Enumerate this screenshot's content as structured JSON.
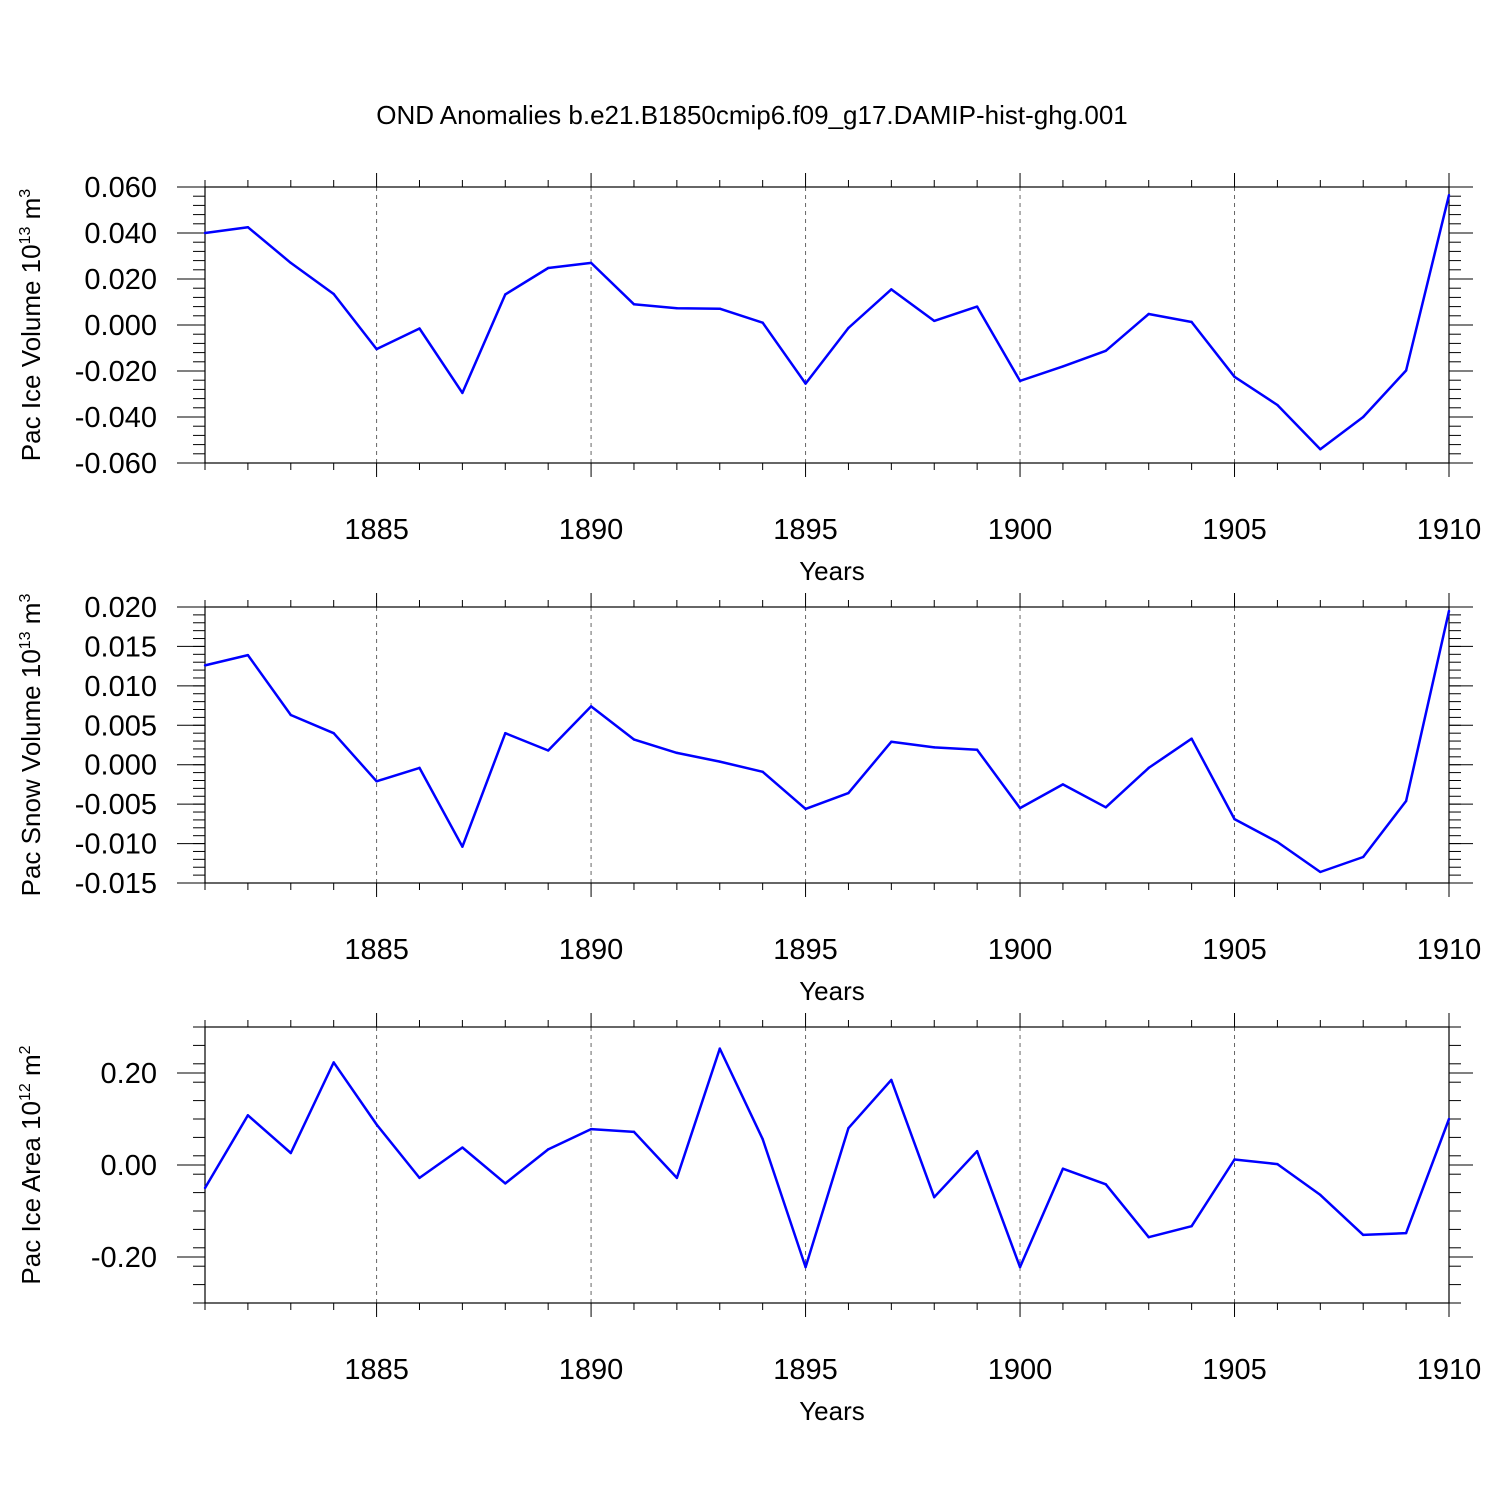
{
  "title": "OND Anomalies b.e21.B1850cmip6.f09_g17.DAMIP-hist-ghg.001",
  "colors": {
    "series": "#0000ff",
    "frame": "#000000",
    "grid": "#666666"
  },
  "chart_data": [
    {
      "type": "line",
      "ylabel": "Pac Ice Volume 10",
      "ylabel_exp": "13",
      "ylabel_unit": " m",
      "ylabel_unit_exp": "3",
      "xlabel": "Years",
      "xlim": [
        1881,
        1910
      ],
      "ylim": [
        -0.06,
        0.06
      ],
      "x_ticks": [
        1885,
        1890,
        1895,
        1900,
        1905,
        1910
      ],
      "y_ticks": [
        0.06,
        0.04,
        0.02,
        0.0,
        -0.02,
        -0.04,
        -0.06
      ],
      "y_tick_labels": [
        "0.060",
        "0.040",
        "0.020",
        "0.000",
        "-0.020",
        "-0.040",
        "-0.060"
      ],
      "grid": "vertical dashed at x ticks",
      "x": [
        1881,
        1882,
        1883,
        1884,
        1885,
        1886,
        1887,
        1888,
        1889,
        1890,
        1891,
        1892,
        1893,
        1894,
        1895,
        1896,
        1897,
        1898,
        1899,
        1900,
        1901,
        1902,
        1903,
        1904,
        1905,
        1906,
        1907,
        1908,
        1909,
        1910
      ],
      "values": [
        0.04,
        0.0425,
        0.027,
        0.0135,
        -0.0105,
        -0.0015,
        -0.0295,
        0.0133,
        0.0248,
        0.027,
        0.009,
        0.0073,
        0.0071,
        0.001,
        -0.0255,
        -0.0013,
        0.0155,
        0.0018,
        0.008,
        -0.0243,
        -0.018,
        -0.0112,
        0.0048,
        0.0013,
        -0.0225,
        -0.0348,
        -0.054,
        -0.04,
        -0.0198,
        0.0565
      ]
    },
    {
      "type": "line",
      "ylabel": "Pac Snow Volume 10",
      "ylabel_exp": "13",
      "ylabel_unit": " m",
      "ylabel_unit_exp": "3",
      "xlabel": "Years",
      "xlim": [
        1881,
        1910
      ],
      "ylim": [
        -0.015,
        0.02
      ],
      "x_ticks": [
        1885,
        1890,
        1895,
        1900,
        1905,
        1910
      ],
      "y_ticks": [
        0.02,
        0.015,
        0.01,
        0.005,
        0.0,
        -0.005,
        -0.01,
        -0.015
      ],
      "y_tick_labels": [
        "0.020",
        "0.015",
        "0.010",
        "0.005",
        "0.000",
        "-0.005",
        "-0.010",
        "-0.015"
      ],
      "grid": "vertical dashed at x ticks",
      "x": [
        1881,
        1882,
        1883,
        1884,
        1885,
        1886,
        1887,
        1888,
        1889,
        1890,
        1891,
        1892,
        1893,
        1894,
        1895,
        1896,
        1897,
        1898,
        1899,
        1900,
        1901,
        1902,
        1903,
        1904,
        1905,
        1906,
        1907,
        1908,
        1909,
        1910
      ],
      "values": [
        0.0126,
        0.0139,
        0.0063,
        0.004,
        -0.0021,
        -0.0004,
        -0.0104,
        0.004,
        0.0018,
        0.0074,
        0.0032,
        0.0015,
        0.0004,
        -0.0009,
        -0.0056,
        -0.0036,
        0.0029,
        0.0022,
        0.0019,
        -0.0055,
        -0.0025,
        -0.0054,
        -0.0004,
        0.0033,
        -0.0069,
        -0.0098,
        -0.0136,
        -0.0117,
        -0.0046,
        0.0195
      ]
    },
    {
      "type": "line",
      "ylabel": "Pac Ice Area 10",
      "ylabel_exp": "12",
      "ylabel_unit": " m",
      "ylabel_unit_exp": "2",
      "xlabel": "Years",
      "xlim": [
        1881,
        1910
      ],
      "ylim": [
        -0.3,
        0.3
      ],
      "x_ticks": [
        1885,
        1890,
        1895,
        1900,
        1905,
        1910
      ],
      "y_ticks": [
        0.2,
        0.0,
        -0.2
      ],
      "y_tick_labels": [
        "0.20",
        "0.00",
        "-0.20"
      ],
      "grid": "vertical dashed at x ticks",
      "x": [
        1881,
        1882,
        1883,
        1884,
        1885,
        1886,
        1887,
        1888,
        1889,
        1890,
        1891,
        1892,
        1893,
        1894,
        1895,
        1896,
        1897,
        1898,
        1899,
        1900,
        1901,
        1902,
        1903,
        1904,
        1905,
        1906,
        1907,
        1908,
        1909,
        1910
      ],
      "values": [
        -0.05,
        0.108,
        0.026,
        0.223,
        0.088,
        -0.028,
        0.038,
        -0.04,
        0.034,
        0.078,
        0.072,
        -0.028,
        0.253,
        0.056,
        -0.222,
        0.08,
        0.185,
        -0.07,
        0.03,
        -0.222,
        -0.008,
        -0.042,
        -0.157,
        -0.133,
        0.012,
        0.002,
        -0.065,
        -0.152,
        -0.148,
        0.1
      ]
    }
  ]
}
